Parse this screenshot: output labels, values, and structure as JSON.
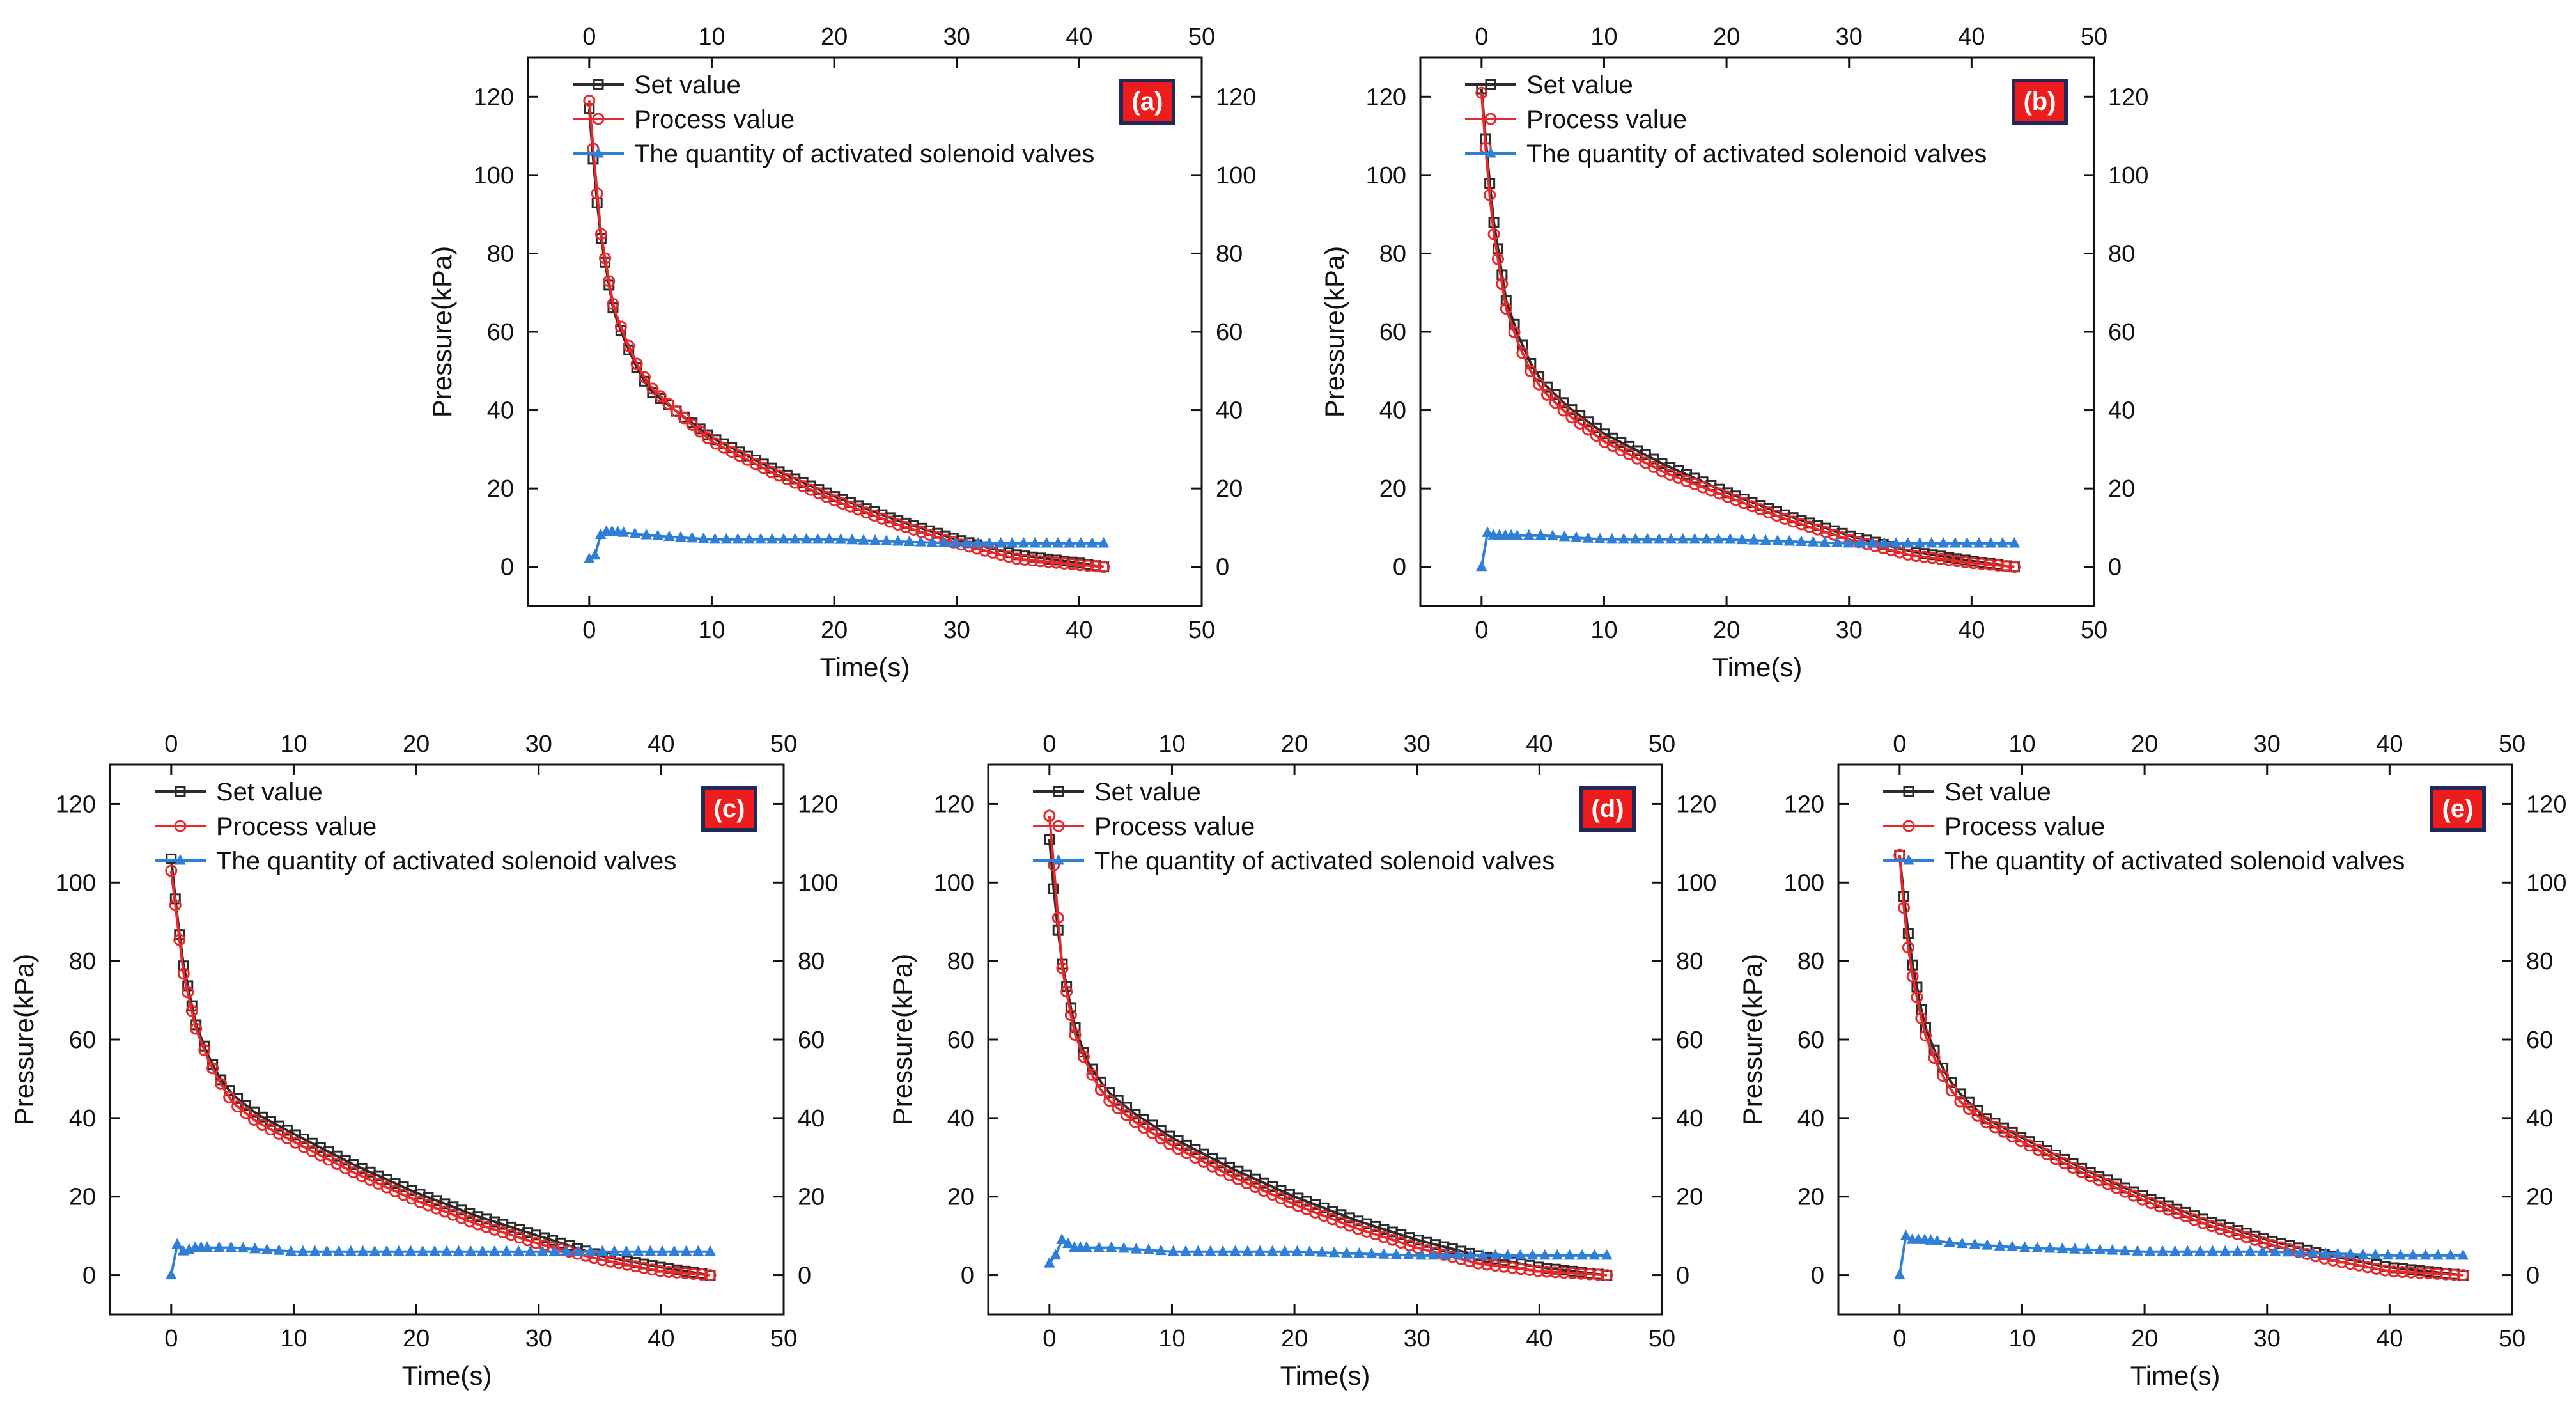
{
  "colors": {
    "set_value": "#2b2b2b",
    "process_value": "#e8282b",
    "solenoid": "#2f7fd6",
    "tag_fill": "#ee1c1c",
    "tag_border": "#1f2a5a"
  },
  "chart_data": [
    {
      "type": "line",
      "panel": "(a)",
      "xlabel": "Time(s)",
      "ylabel": "Pressure(kPa)",
      "xlim": [
        -5,
        50
      ],
      "ylim": [
        -10,
        130
      ],
      "xticks": [
        "0",
        "10",
        "20",
        "30",
        "40",
        "50"
      ],
      "top_xticks": [
        "0",
        "10",
        "20",
        "30",
        "40",
        "50"
      ],
      "yticks": [
        "0",
        "20",
        "40",
        "60",
        "80",
        "100",
        "120"
      ],
      "right_yticks": [
        "0",
        "20",
        "40",
        "60",
        "80",
        "100",
        "120"
      ],
      "legend": [
        "Set value",
        "Process value",
        "The quantity of activated solenoid valves"
      ],
      "series": [
        {
          "name": "Set value",
          "x": [
            0,
            0.5,
            1,
            2,
            3,
            4,
            5,
            7,
            10,
            15,
            20,
            25,
            30,
            35,
            40,
            42
          ],
          "values": [
            117,
            97,
            83,
            65,
            57,
            50,
            45,
            40,
            33,
            25,
            18,
            12,
            7,
            3,
            1,
            0
          ]
        },
        {
          "name": "Process value",
          "x": [
            0,
            0.5,
            1,
            2,
            3,
            4,
            5,
            7,
            10,
            15,
            20,
            25,
            30,
            35,
            40,
            42
          ],
          "values": [
            119,
            100,
            84,
            66,
            58,
            51,
            46,
            40,
            32,
            24,
            17,
            11,
            6,
            2,
            0.5,
            0
          ]
        },
        {
          "name": "The quantity of activated solenoid valves",
          "x": [
            0,
            0.5,
            1,
            2,
            5,
            10,
            20,
            30,
            40,
            42
          ],
          "values": [
            2,
            3,
            9,
            9,
            8,
            7,
            7,
            6,
            6,
            6
          ]
        }
      ]
    },
    {
      "type": "line",
      "panel": "(b)",
      "xlabel": "Time(s)",
      "ylabel": "Pressure(kPa)",
      "xlim": [
        -5,
        50
      ],
      "ylim": [
        -10,
        130
      ],
      "xticks": [
        "0",
        "10",
        "20",
        "30",
        "40",
        "50"
      ],
      "top_xticks": [
        "0",
        "10",
        "20",
        "30",
        "40",
        "50"
      ],
      "yticks": [
        "0",
        "20",
        "40",
        "60",
        "80",
        "100",
        "120"
      ],
      "right_yticks": [
        "0",
        "20",
        "40",
        "60",
        "80",
        "100",
        "120"
      ],
      "legend": [
        "Set value",
        "Process value",
        "The quantity of activated solenoid valves"
      ],
      "series": [
        {
          "name": "Set value",
          "x": [
            0,
            0.5,
            1,
            2,
            3,
            4,
            5,
            7,
            10,
            15,
            20,
            25,
            30,
            35,
            40,
            43.5
          ],
          "values": [
            122,
            103,
            88,
            68,
            59,
            52,
            47,
            41,
            34,
            26,
            19,
            13,
            8,
            4,
            1.5,
            0
          ]
        },
        {
          "name": "Process value",
          "x": [
            0,
            0.5,
            1,
            2,
            3,
            4,
            5,
            7,
            10,
            15,
            20,
            25,
            30,
            35,
            40,
            43.5
          ],
          "values": [
            121,
            100,
            85,
            66,
            57,
            50,
            45,
            39,
            32,
            24,
            18,
            12,
            7,
            3,
            1,
            0
          ]
        },
        {
          "name": "The quantity of activated solenoid valves",
          "x": [
            0,
            0.5,
            1,
            2,
            5,
            10,
            20,
            30,
            40,
            43.5
          ],
          "values": [
            0,
            9,
            8,
            8,
            8,
            7,
            7,
            6,
            6,
            6
          ]
        }
      ]
    },
    {
      "type": "line",
      "panel": "(c)",
      "xlabel": "Time(s)",
      "ylabel": "Pressure(kPa)",
      "xlim": [
        -5,
        50
      ],
      "ylim": [
        -10,
        130
      ],
      "xticks": [
        "0",
        "10",
        "20",
        "30",
        "40",
        "50"
      ],
      "top_xticks": [
        "0",
        "10",
        "20",
        "30",
        "40",
        "50"
      ],
      "yticks": [
        "0",
        "20",
        "40",
        "60",
        "80",
        "100",
        "120"
      ],
      "right_yticks": [
        "0",
        "20",
        "40",
        "60",
        "80",
        "100",
        "120"
      ],
      "legend": [
        "Set value",
        "Process value",
        "The quantity of activated solenoid valves"
      ],
      "series": [
        {
          "name": "Set value",
          "x": [
            0,
            0.5,
            1,
            2,
            3,
            4,
            5,
            7,
            10,
            15,
            20,
            25,
            30,
            35,
            40,
            44
          ],
          "values": [
            106,
            91,
            79,
            64,
            56,
            50,
            46,
            41,
            36,
            28,
            21,
            15,
            10,
            5,
            2,
            0
          ]
        },
        {
          "name": "Process value",
          "x": [
            0,
            0.5,
            1,
            2,
            3,
            4,
            5,
            7,
            10,
            15,
            20,
            25,
            30,
            35,
            40,
            44
          ],
          "values": [
            103,
            90,
            77,
            63,
            55,
            49,
            44,
            39,
            34,
            26,
            19,
            13,
            8,
            4,
            1,
            0
          ]
        },
        {
          "name": "The quantity of activated solenoid valves",
          "x": [
            0,
            0.5,
            1,
            2,
            5,
            10,
            20,
            30,
            40,
            44
          ],
          "values": [
            0,
            8,
            6,
            7,
            7,
            6,
            6,
            6,
            6,
            6
          ]
        }
      ]
    },
    {
      "type": "line",
      "panel": "(d)",
      "xlabel": "Time(s)",
      "ylabel": "Pressure(kPa)",
      "xlim": [
        -5,
        50
      ],
      "ylim": [
        -10,
        130
      ],
      "xticks": [
        "0",
        "10",
        "20",
        "30",
        "40",
        "50"
      ],
      "top_xticks": [
        "0",
        "10",
        "20",
        "30",
        "40",
        "50"
      ],
      "yticks": [
        "0",
        "20",
        "40",
        "60",
        "80",
        "100",
        "120"
      ],
      "right_yticks": [
        "0",
        "20",
        "40",
        "60",
        "80",
        "100",
        "120"
      ],
      "legend": [
        "Set value",
        "Process value",
        "The quantity of activated solenoid valves"
      ],
      "series": [
        {
          "name": "Set value",
          "x": [
            0,
            0.5,
            1,
            2,
            3,
            4,
            5,
            7,
            10,
            15,
            20,
            25,
            30,
            35,
            40,
            45.5
          ],
          "values": [
            111,
            93,
            80,
            64,
            55,
            50,
            46,
            41,
            35,
            27,
            20,
            14,
            9,
            5,
            2,
            0
          ]
        },
        {
          "name": "Process value",
          "x": [
            0,
            0.5,
            1,
            2,
            3,
            4,
            5,
            7,
            10,
            15,
            20,
            25,
            30,
            35,
            40,
            45.5
          ],
          "values": [
            117,
            99,
            79,
            62,
            54,
            48,
            44,
            39,
            33,
            25,
            18,
            12,
            7,
            3,
            1,
            0
          ]
        },
        {
          "name": "The quantity of activated solenoid valves",
          "x": [
            0,
            0.5,
            1,
            2,
            5,
            10,
            20,
            30,
            40,
            45.5
          ],
          "values": [
            3,
            5,
            9,
            7,
            7,
            6,
            6,
            5,
            5,
            5
          ]
        }
      ]
    },
    {
      "type": "line",
      "panel": "(e)",
      "xlabel": "Time(s)",
      "ylabel": "Pressure(kPa)",
      "xlim": [
        -5,
        50
      ],
      "ylim": [
        -10,
        130
      ],
      "xticks": [
        "0",
        "10",
        "20",
        "30",
        "40",
        "50"
      ],
      "top_xticks": [
        "0",
        "10",
        "20",
        "30",
        "40",
        "50"
      ],
      "yticks": [
        "0",
        "20",
        "40",
        "60",
        "80",
        "100",
        "120"
      ],
      "right_yticks": [
        "0",
        "20",
        "40",
        "60",
        "80",
        "100",
        "120"
      ],
      "legend": [
        "Set value",
        "Process value",
        "The quantity of activated solenoid valves"
      ],
      "series": [
        {
          "name": "Set value",
          "x": [
            0,
            0.5,
            1,
            2,
            3,
            4,
            5,
            7,
            10,
            15,
            20,
            25,
            30,
            35,
            40,
            46
          ],
          "values": [
            107,
            92,
            80,
            64,
            56,
            50,
            46,
            40,
            35,
            27,
            20,
            14,
            9,
            5,
            2,
            0
          ]
        },
        {
          "name": "Process value",
          "x": [
            0,
            0.5,
            1,
            2,
            3,
            4,
            5,
            7,
            10,
            15,
            20,
            25,
            30,
            35,
            40,
            46
          ],
          "values": [
            107,
            88,
            77,
            62,
            54,
            48,
            44,
            39,
            34,
            26,
            19,
            13,
            8,
            4,
            1,
            0
          ]
        },
        {
          "name": "The quantity of activated solenoid valves",
          "x": [
            0,
            0.5,
            1,
            2,
            5,
            10,
            20,
            30,
            40,
            46
          ],
          "values": [
            0,
            10,
            9,
            9,
            8,
            7,
            6,
            6,
            5,
            5
          ]
        }
      ]
    }
  ]
}
